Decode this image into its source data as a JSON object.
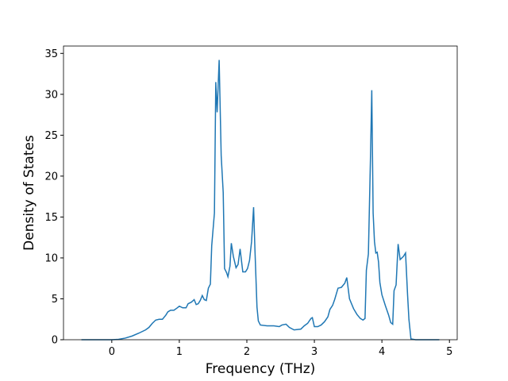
{
  "chart_data": {
    "type": "line",
    "xlabel": "Frequency (THz)",
    "ylabel": "Density of States",
    "xlim": [
      -0.715,
      5.115
    ],
    "ylim": [
      0,
      35.9
    ],
    "xticks": [
      0,
      1,
      2,
      3,
      4,
      5
    ],
    "yticks": [
      0,
      5,
      10,
      15,
      20,
      25,
      30,
      35
    ],
    "series": [
      {
        "color": "#1f77b4",
        "x": [
          -0.45,
          0,
          0.1,
          0.2,
          0.3,
          0.4,
          0.5,
          0.55,
          0.6,
          0.65,
          0.7,
          0.75,
          0.8,
          0.83,
          0.87,
          0.92,
          0.97,
          1.0,
          1.05,
          1.1,
          1.13,
          1.18,
          1.22,
          1.25,
          1.28,
          1.31,
          1.34,
          1.37,
          1.4,
          1.43,
          1.46,
          1.48,
          1.52,
          1.54,
          1.56,
          1.59,
          1.62,
          1.65,
          1.67,
          1.7,
          1.72,
          1.75,
          1.77,
          1.8,
          1.84,
          1.87,
          1.9,
          1.94,
          1.98,
          2.01,
          2.04,
          2.07,
          2.1,
          2.12,
          2.15,
          2.17,
          2.2,
          2.3,
          2.4,
          2.48,
          2.52,
          2.58,
          2.63,
          2.7,
          2.8,
          2.85,
          2.9,
          2.95,
          2.97,
          3.0,
          3.05,
          3.1,
          3.15,
          3.2,
          3.23,
          3.27,
          3.3,
          3.35,
          3.4,
          3.45,
          3.48,
          3.52,
          3.58,
          3.63,
          3.68,
          3.72,
          3.75,
          3.77,
          3.8,
          3.83,
          3.85,
          3.87,
          3.89,
          3.91,
          3.93,
          3.95,
          3.97,
          4.0,
          4.05,
          4.1,
          4.13,
          4.16,
          4.18,
          4.21,
          4.24,
          4.27,
          4.32,
          4.35,
          4.38,
          4.4,
          4.43,
          4.5,
          4.85
        ],
        "values": [
          0,
          0,
          0.05,
          0.2,
          0.45,
          0.8,
          1.2,
          1.5,
          2.0,
          2.4,
          2.5,
          2.5,
          3.0,
          3.4,
          3.6,
          3.6,
          3.9,
          4.1,
          3.9,
          3.9,
          4.4,
          4.6,
          4.9,
          4.3,
          4.4,
          4.8,
          5.4,
          4.9,
          4.8,
          6.3,
          6.8,
          11.5,
          15.5,
          31.5,
          27.8,
          34.2,
          22.5,
          18,
          8.7,
          8.2,
          7.7,
          9,
          11.8,
          10.2,
          8.8,
          9.2,
          11.1,
          8.3,
          8.3,
          8.7,
          9.7,
          12,
          16.2,
          11,
          4,
          2.3,
          1.8,
          1.7,
          1.7,
          1.6,
          1.8,
          1.9,
          1.5,
          1.2,
          1.3,
          1.7,
          2.0,
          2.6,
          2.7,
          1.6,
          1.6,
          1.8,
          2.2,
          2.8,
          3.7,
          4.2,
          4.9,
          6.3,
          6.4,
          6.9,
          7.6,
          5.0,
          3.8,
          3.1,
          2.6,
          2.4,
          2.6,
          8.5,
          10.5,
          22,
          30.5,
          15.5,
          12,
          10.6,
          10.7,
          9.5,
          7,
          5.5,
          4.2,
          3,
          2.1,
          1.9,
          6,
          6.7,
          11.7,
          9.8,
          10.2,
          10.6,
          5.5,
          2.5,
          0.1,
          0,
          0
        ]
      }
    ]
  }
}
